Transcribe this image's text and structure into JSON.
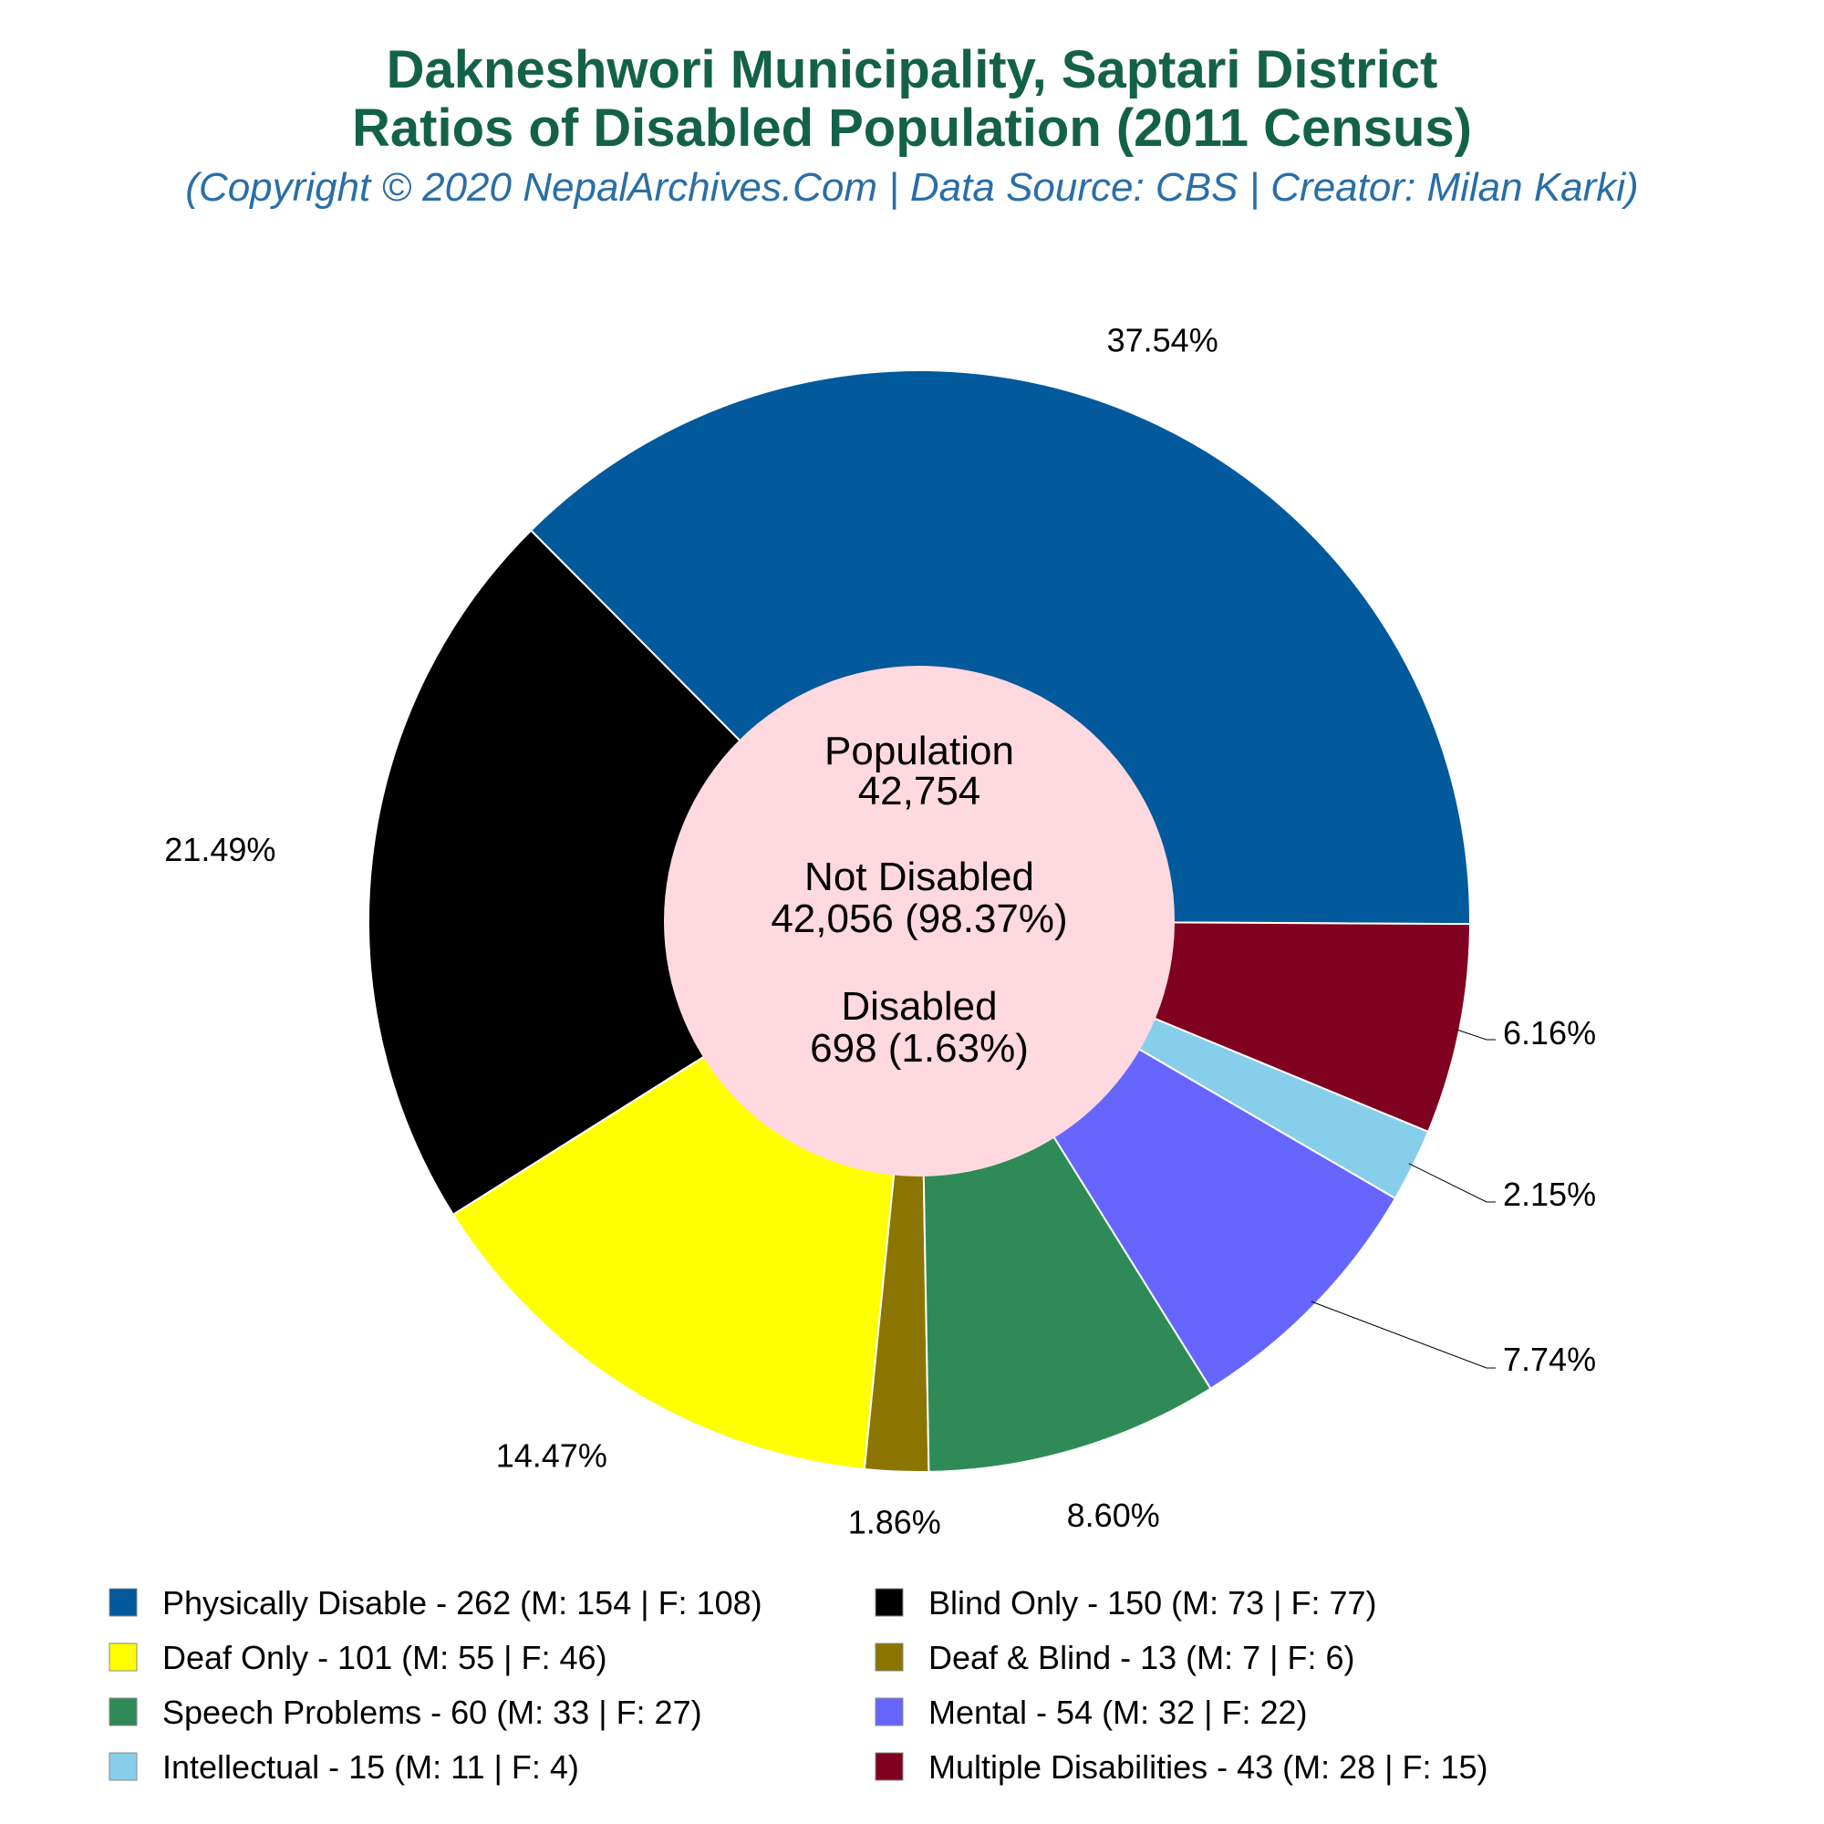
{
  "chart_data": {
    "type": "pie",
    "title_line1": "Dakneshwori Municipality, Saptari District",
    "title_line2": "Ratios of Disabled Population (2011 Census)",
    "subtitle": "(Copyright © 2020 NepalArchives.Com | Data Source: CBS | Creator: Milan Karki)",
    "center": {
      "population_label": "Population",
      "population_value": "42,754",
      "not_disabled_label": "Not Disabled",
      "not_disabled_value": "42,056 (98.37%)",
      "disabled_label": "Disabled",
      "disabled_value": "698 (1.63%)"
    },
    "slices": [
      {
        "label": "Physically Disable",
        "value": 262,
        "pct_label": "37.54%",
        "legend": "Physically Disable - 262 (M: 154 | F: 108)",
        "color": "#02599c"
      },
      {
        "label": "Blind Only",
        "value": 150,
        "pct_label": "21.49%",
        "legend": "Blind Only - 150 (M: 73 | F: 77)",
        "color": "#000000"
      },
      {
        "label": "Deaf Only",
        "value": 101,
        "pct_label": "14.47%",
        "legend": "Deaf Only - 101 (M: 55 | F: 46)",
        "color": "#ffff00"
      },
      {
        "label": "Deaf & Blind",
        "value": 13,
        "pct_label": "1.86%",
        "legend": "Deaf & Blind - 13 (M: 7 | F: 6)",
        "color": "#8b7500"
      },
      {
        "label": "Speech Problems",
        "value": 60,
        "pct_label": "8.60%",
        "legend": "Speech Problems - 60 (M: 33 | F: 27)",
        "color": "#2e8b57"
      },
      {
        "label": "Mental",
        "value": 54,
        "pct_label": "7.74%",
        "legend": "Mental - 54 (M: 32 | F: 22)",
        "color": "#6666ff"
      },
      {
        "label": "Intellectual",
        "value": 15,
        "pct_label": "2.15%",
        "legend": "Intellectual - 15 (M: 11 | F: 4)",
        "color": "#87ceeb"
      },
      {
        "label": "Multiple Disabilities",
        "value": 43,
        "pct_label": "6.16%",
        "legend": "Multiple Disabilities - 43 (M: 28 | F: 15)",
        "color": "#800020"
      }
    ],
    "center_color": "#ffd9e0",
    "legend_position": "bottom"
  }
}
